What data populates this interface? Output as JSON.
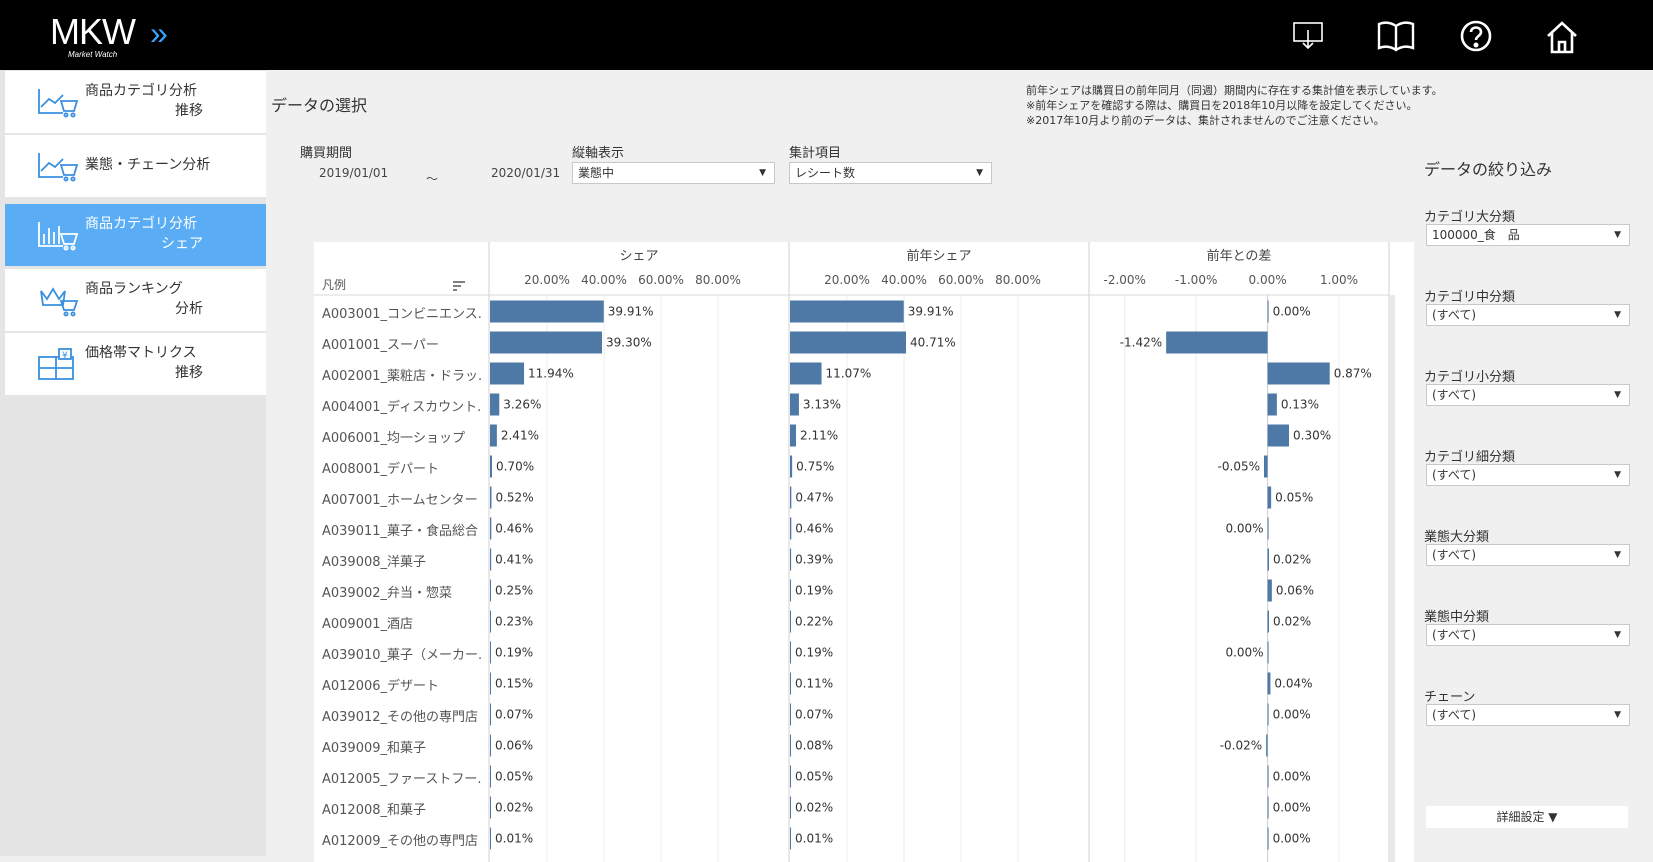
{
  "app": {
    "logo_text": "MKW",
    "logo_sub": "Market Watch"
  },
  "sidebar": {
    "items": [
      {
        "line1": "商品カテゴリ分析",
        "line2": "推移",
        "icon": "line-chart-cart-icon",
        "active": false
      },
      {
        "line1": "業態・チェーン分析",
        "line2": "",
        "icon": "line-chart-cart-icon",
        "active": false
      },
      {
        "line1": "商品カテゴリ分析",
        "line2": "シェア",
        "icon": "bar-chart-cart-icon",
        "active": true
      },
      {
        "line1": "商品ランキング",
        "line2": "分析",
        "icon": "crown-cart-icon",
        "active": false
      },
      {
        "line1": "価格帯マトリクス",
        "line2": "推移",
        "icon": "price-grid-icon",
        "active": false
      }
    ]
  },
  "header": {
    "icons": [
      "download-icon",
      "book-icon",
      "help-icon",
      "home-icon"
    ]
  },
  "main": {
    "title": "データの選択",
    "notices": [
      "前年シェアは購買日の前年同月（同週）期間内に存在する集計値を表示しています。",
      "※前年シェアを確認する際は、購買日を2018年10月以降を設定してください。",
      "※2017年10月より前のデータは、集計されませんのでご注意ください。"
    ],
    "period": {
      "label": "購買期間",
      "from": "2019/01/01",
      "sep": "～",
      "to": "2020/01/31"
    },
    "vertical_axis": {
      "label": "縦軸表示",
      "value": "業態中"
    },
    "aggregate": {
      "label": "集計項目",
      "value": "レシート数"
    }
  },
  "chart_data": {
    "type": "bar",
    "legend_header": "凡例",
    "panels": [
      {
        "title": "シェア",
        "ticks": [
          "20.00%",
          "40.00%",
          "60.00%",
          "80.00%"
        ]
      },
      {
        "title": "前年シェア",
        "ticks": [
          "20.00%",
          "40.00%",
          "60.00%",
          "80.00%"
        ]
      },
      {
        "title": "前年との差",
        "ticks": [
          "-2.00%",
          "-1.00%",
          "0.00%",
          "1.00%"
        ]
      }
    ],
    "categories": [
      "A003001_コンビニエンス..",
      "A001001_スーパー",
      "A002001_薬粧店・ドラッ..",
      "A004001_ディスカウント..",
      "A006001_均一ショップ",
      "A008001_デパート",
      "A007001_ホームセンター",
      "A039011_菓子・食品総合",
      "A039008_洋菓子",
      "A039002_弁当・惣菜",
      "A009001_酒店",
      "A039010_菓子（メーカー..",
      "A012006_デザート",
      "A039012_その他の専門店",
      "A039009_和菓子",
      "A012005_ファーストフー..",
      "A012008_和菓子",
      "A012009_その他の専門店"
    ],
    "series": [
      {
        "name": "シェア",
        "values": [
          39.91,
          39.3,
          11.94,
          3.26,
          2.41,
          0.7,
          0.52,
          0.46,
          0.41,
          0.25,
          0.23,
          0.19,
          0.15,
          0.07,
          0.06,
          0.05,
          0.02,
          0.01
        ],
        "labels": [
          "39.91%",
          "39.30%",
          "11.94%",
          "3.26%",
          "2.41%",
          "0.70%",
          "0.52%",
          "0.46%",
          "0.41%",
          "0.25%",
          "0.23%",
          "0.19%",
          "0.15%",
          "0.07%",
          "0.06%",
          "0.05%",
          "0.02%",
          "0.01%"
        ]
      },
      {
        "name": "前年シェア",
        "values": [
          39.91,
          40.71,
          11.07,
          3.13,
          2.11,
          0.75,
          0.47,
          0.46,
          0.39,
          0.19,
          0.22,
          0.19,
          0.11,
          0.07,
          0.08,
          0.05,
          0.02,
          0.01
        ],
        "labels": [
          "39.91%",
          "40.71%",
          "11.07%",
          "3.13%",
          "2.11%",
          "0.75%",
          "0.47%",
          "0.46%",
          "0.39%",
          "0.19%",
          "0.22%",
          "0.19%",
          "0.11%",
          "0.07%",
          "0.08%",
          "0.05%",
          "0.02%",
          "0.01%"
        ]
      },
      {
        "name": "前年との差",
        "values": [
          0.0,
          -1.42,
          0.87,
          0.13,
          0.3,
          -0.05,
          0.05,
          0.0,
          0.02,
          0.06,
          0.02,
          0.0,
          0.04,
          0.0,
          -0.02,
          0.0,
          0.0,
          0.0
        ],
        "labels": [
          "0.00%",
          "-1.42%",
          "0.87%",
          "0.13%",
          "0.30%",
          "-0.05%",
          "0.05%",
          "0.00%",
          "0.02%",
          "0.06%",
          "0.02%",
          "0.00%",
          "0.04%",
          "0.00%",
          "-0.02%",
          "0.00%",
          "0.00%",
          "0.00%"
        ]
      }
    ],
    "share_range": [
      0,
      100
    ],
    "diff_range": [
      -2.5,
      1.7
    ],
    "bar_color": "#4e79a7"
  },
  "filters": {
    "title": "データの絞り込み",
    "items": [
      {
        "label": "カテゴリ大分類",
        "value": "100000_食　品"
      },
      {
        "label": "カテゴリ中分類",
        "value": "(すべて)"
      },
      {
        "label": "カテゴリ小分類",
        "value": "(すべて)"
      },
      {
        "label": "カテゴリ細分類",
        "value": "(すべて)"
      },
      {
        "label": "業態大分類",
        "value": "(すべて)"
      },
      {
        "label": "業態中分類",
        "value": "(すべて)"
      },
      {
        "label": "チェーン",
        "value": "(すべて)"
      }
    ],
    "detail_button": "詳細設定 ▼"
  }
}
